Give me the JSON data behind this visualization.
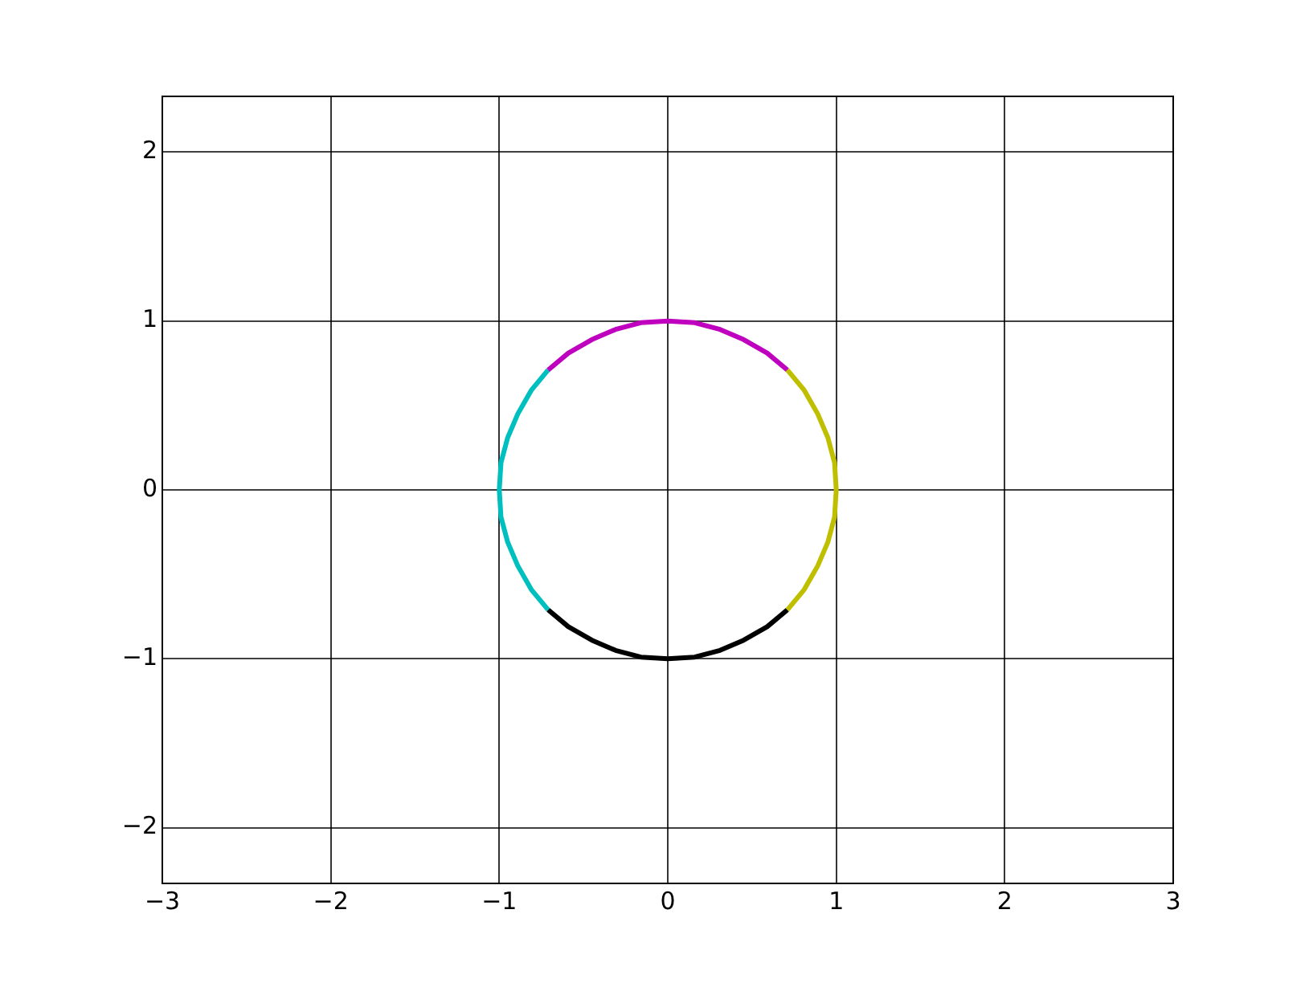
{
  "chart_data": {
    "type": "line",
    "xlim": [
      -3,
      3
    ],
    "ylim": [
      -2.33,
      2.33
    ],
    "xticks": [
      {
        "value": -3,
        "label": "−3"
      },
      {
        "value": -2,
        "label": "−2"
      },
      {
        "value": -1,
        "label": "−1"
      },
      0,
      1,
      2,
      3
    ],
    "yticks": [
      {
        "value": -2,
        "label": "−2"
      },
      {
        "value": -1,
        "label": "−1"
      },
      0,
      1,
      2
    ],
    "grid": true,
    "marker": "none",
    "line_style": "solid",
    "series": [
      {
        "color": "#bfbf00",
        "x": [
          0.71,
          0.81,
          0.89,
          0.95,
          0.99,
          1,
          0.99,
          0.95,
          0.89,
          0.81,
          0.71
        ],
        "values": [
          -0.71,
          -0.59,
          -0.45,
          -0.31,
          -0.16,
          0,
          0.16,
          0.31,
          0.45,
          0.59,
          0.71
        ]
      },
      {
        "color": "#bf00bf",
        "x": [
          0.71,
          0.59,
          0.45,
          0.31,
          0.16,
          0,
          -0.16,
          -0.31,
          -0.45,
          -0.59,
          -0.71
        ],
        "values": [
          0.71,
          0.81,
          0.89,
          0.95,
          0.99,
          1,
          0.99,
          0.95,
          0.89,
          0.81,
          0.71
        ]
      },
      {
        "color": "#00bfbf",
        "x": [
          -0.71,
          -0.81,
          -0.89,
          -0.95,
          -0.99,
          -1,
          -0.99,
          -0.95,
          -0.89,
          -0.81,
          -0.71
        ],
        "values": [
          0.71,
          0.59,
          0.45,
          0.31,
          0.16,
          0,
          -0.16,
          -0.31,
          -0.45,
          -0.59,
          -0.71
        ]
      },
      {
        "color": "#000000",
        "x": [
          -0.71,
          -0.59,
          -0.45,
          -0.31,
          -0.16,
          0,
          0.16,
          0.31,
          0.45,
          0.59,
          0.71
        ],
        "values": [
          -0.71,
          -0.81,
          -0.89,
          -0.95,
          -0.99,
          -1,
          -0.99,
          -0.95,
          -0.89,
          -0.81,
          -0.71
        ]
      }
    ]
  }
}
